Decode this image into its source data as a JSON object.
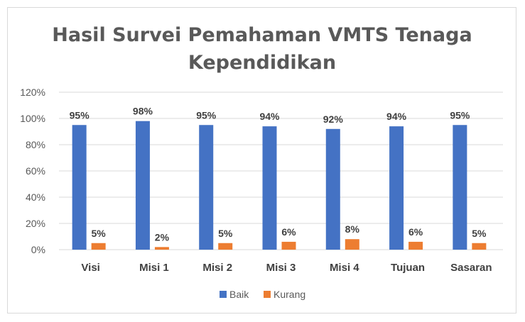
{
  "chart_data": {
    "type": "bar",
    "title_lines": [
      "Hasil Survei Pemahaman VMTS Tenaga",
      "Kependidikan"
    ],
    "categories": [
      "Visi",
      "Misi 1",
      "Misi 2",
      "Misi 3",
      "Misi 4",
      "Tujuan",
      "Sasaran"
    ],
    "series": [
      {
        "name": "Baik",
        "values": [
          95,
          98,
          95,
          94,
          92,
          94,
          95
        ],
        "labels": [
          "95%",
          "98%",
          "95%",
          "94%",
          "92%",
          "94%",
          "95%"
        ],
        "color": "#4472c4"
      },
      {
        "name": "Kurang",
        "values": [
          5,
          2,
          5,
          6,
          8,
          6,
          5
        ],
        "labels": [
          "5%",
          "2%",
          "5%",
          "6%",
          "8%",
          "6%",
          "5%"
        ],
        "color": "#ed7d31"
      }
    ],
    "ylim": [
      0,
      120
    ],
    "yticks": [
      0,
      20,
      40,
      60,
      80,
      100,
      120
    ],
    "ytick_labels": [
      "0%",
      "20%",
      "40%",
      "60%",
      "80%",
      "100%",
      "120%"
    ],
    "grid": true,
    "gridline_color": "#d9d9d9",
    "legend_position": "bottom"
  }
}
